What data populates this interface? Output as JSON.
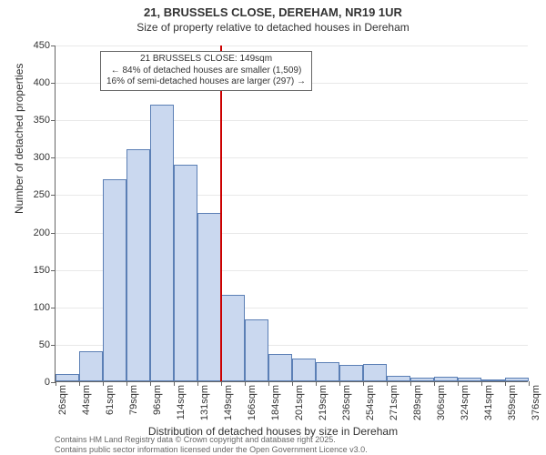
{
  "title": "21, BRUSSELS CLOSE, DEREHAM, NR19 1UR",
  "subtitle": "Size of property relative to detached houses in Dereham",
  "ylabel": "Number of detached properties",
  "xlabel": "Distribution of detached houses by size in Dereham",
  "footer_line1": "Contains HM Land Registry data © Crown copyright and database right 2025.",
  "footer_line2": "Contains public sector information licensed under the Open Government Licence v3.0.",
  "annotation": {
    "line1": "21 BRUSSELS CLOSE: 149sqm",
    "line2": "← 84% of detached houses are smaller (1,509)",
    "line3": "16% of semi-detached houses are larger (297) →"
  },
  "chart": {
    "type": "histogram",
    "ylim": [
      0,
      450
    ],
    "ytick_step": 50,
    "xtick_labels": [
      "26sqm",
      "44sqm",
      "61sqm",
      "79sqm",
      "96sqm",
      "114sqm",
      "131sqm",
      "149sqm",
      "166sqm",
      "184sqm",
      "201sqm",
      "219sqm",
      "236sqm",
      "254sqm",
      "271sqm",
      "289sqm",
      "306sqm",
      "324sqm",
      "341sqm",
      "359sqm",
      "376sqm"
    ],
    "bar_values": [
      10,
      40,
      270,
      310,
      370,
      290,
      225,
      115,
      83,
      36,
      30,
      25,
      22,
      23,
      7,
      5,
      6,
      5,
      3,
      5
    ],
    "bar_fill": "#cad8ef",
    "bar_stroke": "#5b7fb5",
    "marker_color": "#cc0000",
    "marker_bin_index": 7,
    "background_color": "#ffffff",
    "grid_color": "#666666",
    "axis_fontsize": 11,
    "label_fontsize": 12,
    "title_fontsize": 13
  }
}
